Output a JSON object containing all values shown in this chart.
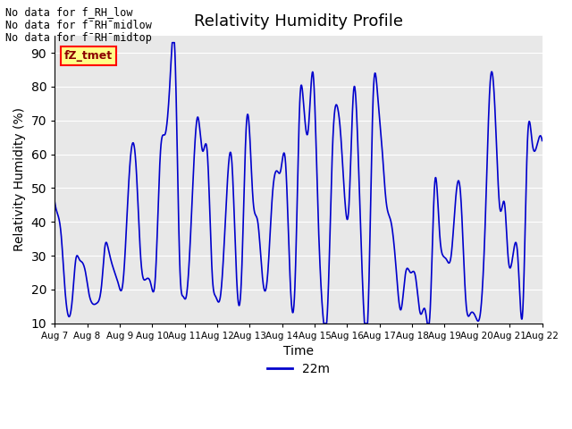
{
  "title": "Relativity Humidity Profile",
  "xlabel": "Time",
  "ylabel": "Relativity Humidity (%)",
  "ylim": [
    10,
    95
  ],
  "yticks": [
    10,
    20,
    30,
    40,
    50,
    60,
    70,
    80,
    90
  ],
  "line_color": "#0000CC",
  "line_width": 1.2,
  "bg_color": "#E8E8E8",
  "legend_label": "22m",
  "no_data_texts": [
    "No data for f_RH_low",
    "No data for f¯RH¯midlow",
    "No data for f¯RH¯midtop"
  ],
  "fz_tmet_text": "fZ_tmet",
  "x_tick_labels": [
    "Aug 7",
    "Aug 8",
    "Aug 9",
    "Aug 10",
    "Aug 11",
    "Aug 12",
    "Aug 13",
    "Aug 14",
    "Aug 15",
    "Aug 16",
    "Aug 17",
    "Aug 18",
    "Aug 19",
    "Aug 20",
    "Aug 21",
    "Aug 22"
  ],
  "ctrl_t": [
    0.0,
    0.1,
    0.2,
    0.3,
    0.45,
    0.55,
    0.65,
    0.75,
    0.85,
    0.95,
    1.05,
    1.15,
    1.3,
    1.45,
    1.55,
    1.65,
    1.75,
    1.85,
    1.95,
    2.1,
    2.3,
    2.5,
    2.65,
    2.8,
    2.95,
    3.1,
    3.25,
    3.4,
    3.55,
    3.7,
    3.85,
    3.95,
    4.05,
    4.2,
    4.4,
    4.55,
    4.7,
    4.85,
    4.95,
    5.1,
    5.25,
    5.45,
    5.6,
    5.75,
    5.9,
    6.0,
    6.1,
    6.25,
    6.4,
    6.55,
    6.7,
    6.85,
    6.95,
    7.1,
    7.25,
    7.4,
    7.55,
    7.65,
    7.8,
    7.95,
    8.1,
    8.25,
    8.4,
    8.55,
    8.7,
    8.8,
    8.95,
    9.05,
    9.2,
    9.35,
    9.5,
    9.65,
    9.8,
    9.95,
    10.05,
    10.2,
    10.35,
    10.5,
    10.65,
    10.8,
    10.95,
    11.1,
    11.25,
    11.4,
    11.55,
    11.7,
    11.85,
    11.95,
    12.05,
    12.2,
    12.35,
    12.5,
    12.65,
    12.8,
    12.95,
    13.1,
    13.25,
    13.4,
    13.55,
    13.7,
    13.85,
    13.95,
    14.1,
    14.25,
    14.4,
    14.55,
    14.7,
    14.85,
    15.0
  ],
  "ctrl_v": [
    46,
    42,
    36,
    22,
    12,
    18,
    29,
    29,
    28,
    25,
    19,
    16,
    16,
    22,
    33,
    32,
    28,
    25,
    22,
    22,
    55,
    57,
    29,
    23,
    22,
    24,
    60,
    66,
    82,
    90,
    27,
    18,
    18,
    40,
    71,
    61,
    60,
    24,
    18,
    18,
    40,
    58,
    23,
    24,
    69,
    66,
    47,
    40,
    23,
    24,
    48,
    55,
    55,
    58,
    22,
    23,
    77,
    76,
    67,
    84,
    44,
    13,
    15,
    62,
    74,
    66,
    44,
    44,
    79,
    57,
    16,
    15,
    77,
    76,
    65,
    46,
    40,
    27,
    14,
    25,
    25,
    24,
    13,
    14,
    13,
    52,
    36,
    30,
    29,
    30,
    48,
    47,
    17,
    13,
    12,
    13,
    40,
    81,
    73,
    44,
    45,
    30,
    30,
    30,
    13,
    64,
    63,
    63,
    64
  ],
  "figsize": [
    6.4,
    4.8
  ],
  "dpi": 100
}
